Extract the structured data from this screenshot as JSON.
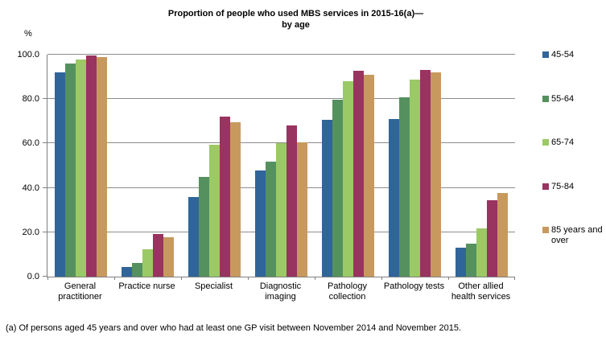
{
  "title_line1": "Proportion of people who used MBS services in 2015-16(a)—",
  "title_line2": "by age",
  "footnote": "(a) Of persons aged 45 years and over who had at least one GP visit between November 2014 and November 2015.",
  "colors": {
    "axis": "#7F7F7F",
    "gridline": "#8C8C8C",
    "background": "#FFFFFF"
  },
  "chart_data": {
    "type": "bar",
    "title": "Proportion of people who used MBS services in 2015-16(a)— by age",
    "ylabel": "%",
    "xlabel": "",
    "ylim": [
      0,
      100
    ],
    "yticks": [
      0,
      20,
      40,
      60,
      80,
      100
    ],
    "ytick_labels": [
      "0.0",
      "20.0",
      "40.0",
      "60.0",
      "80.0",
      "100.0"
    ],
    "grid": true,
    "legend_position": "right",
    "categories": [
      "General practitioner",
      "Practice nurse",
      "Specialist",
      "Diagnostic imaging",
      "Pathology collection",
      "Pathology tests",
      "Other allied health services"
    ],
    "series": [
      {
        "name": "45-54",
        "color": "#30659A",
        "values": [
          92.1,
          4.2,
          35.7,
          47.9,
          70.7,
          71.0,
          13.0
        ]
      },
      {
        "name": "55-64",
        "color": "#55915E",
        "values": [
          95.9,
          6.3,
          44.8,
          51.7,
          79.7,
          80.7,
          14.9
        ]
      },
      {
        "name": "65-74",
        "color": "#9BC965",
        "values": [
          97.7,
          12.2,
          59.5,
          60.0,
          87.9,
          88.6,
          21.7
        ]
      },
      {
        "name": "75-84",
        "color": "#993360",
        "values": [
          99.6,
          19.1,
          72.2,
          68.1,
          92.8,
          93.3,
          34.3
        ]
      },
      {
        "name": "85 years and over",
        "color": "#C8995F",
        "values": [
          99.0,
          17.9,
          69.6,
          60.6,
          91.1,
          91.9,
          37.8
        ]
      }
    ]
  }
}
